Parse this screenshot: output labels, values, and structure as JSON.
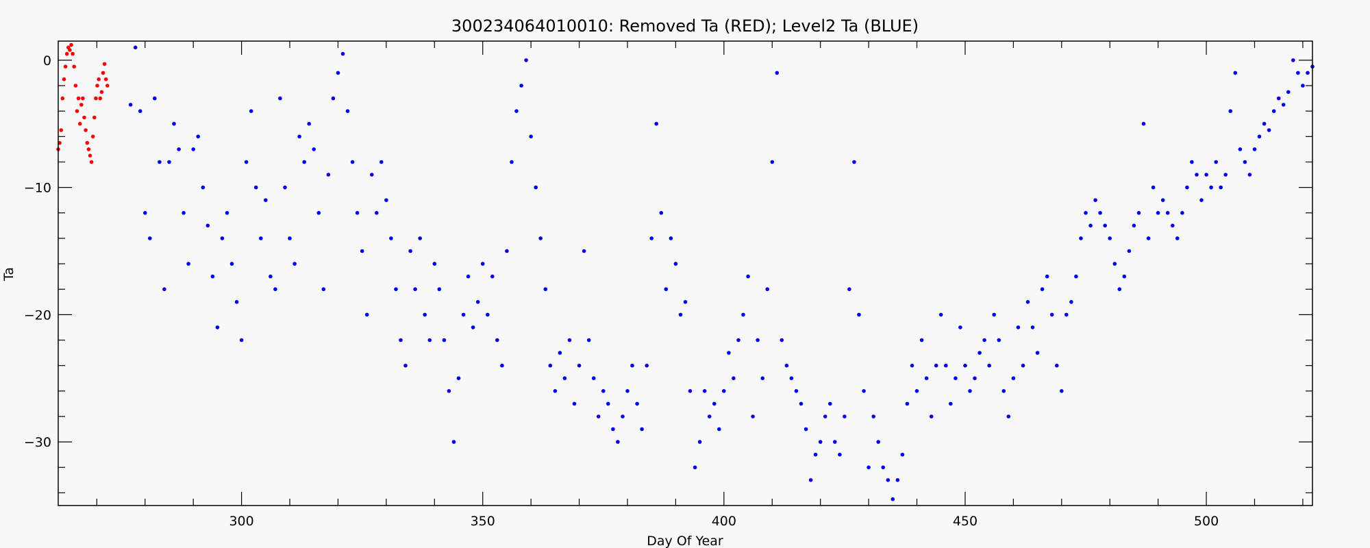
{
  "chart_data": {
    "type": "scatter",
    "title": "300234064010010: Removed Ta (RED); Level2 Ta (BLUE)",
    "xlabel": "Day Of Year",
    "ylabel": "Ta",
    "xlim": [
      262,
      522
    ],
    "ylim": [
      -35,
      1.5
    ],
    "x_ticks": [
      300,
      350,
      400,
      450,
      500
    ],
    "y_ticks": [
      0,
      -10,
      -20,
      -30
    ],
    "x_minor_step": 10,
    "y_minor_step": 2,
    "grid": false,
    "series": [
      {
        "color": "#ff0000",
        "marker": "dot",
        "points": [
          [
            262.0,
            -7.0
          ],
          [
            262.3,
            -6.5
          ],
          [
            262.6,
            -5.5
          ],
          [
            262.9,
            -3.0
          ],
          [
            263.2,
            -1.5
          ],
          [
            263.5,
            -0.5
          ],
          [
            263.8,
            0.5
          ],
          [
            264.1,
            1.0
          ],
          [
            264.4,
            0.8
          ],
          [
            264.7,
            1.2
          ],
          [
            265.0,
            0.5
          ],
          [
            265.3,
            -0.5
          ],
          [
            265.6,
            -2.0
          ],
          [
            265.9,
            -4.0
          ],
          [
            266.2,
            -3.0
          ],
          [
            266.5,
            -5.0
          ],
          [
            266.8,
            -3.5
          ],
          [
            267.1,
            -3.0
          ],
          [
            267.4,
            -4.5
          ],
          [
            267.7,
            -5.5
          ],
          [
            268.0,
            -6.5
          ],
          [
            268.3,
            -7.0
          ],
          [
            268.6,
            -7.5
          ],
          [
            268.9,
            -8.0
          ],
          [
            269.2,
            -6.0
          ],
          [
            269.5,
            -4.5
          ],
          [
            269.8,
            -3.0
          ],
          [
            270.1,
            -2.0
          ],
          [
            270.4,
            -1.5
          ],
          [
            270.7,
            -3.0
          ],
          [
            271.0,
            -2.5
          ],
          [
            271.3,
            -1.0
          ],
          [
            271.6,
            -0.3
          ],
          [
            271.9,
            -1.5
          ],
          [
            272.2,
            -2.0
          ]
        ]
      },
      {
        "color": "#0000ee",
        "marker": "dot",
        "points": [
          [
            277,
            -3.5
          ],
          [
            278,
            1.0
          ],
          [
            279,
            -4.0
          ],
          [
            280,
            -12.0
          ],
          [
            281,
            -14.0
          ],
          [
            282,
            -3.0
          ],
          [
            283,
            -8.0
          ],
          [
            284,
            -18.0
          ],
          [
            285,
            -8.0
          ],
          [
            286,
            -5.0
          ],
          [
            287,
            -7.0
          ],
          [
            288,
            -12.0
          ],
          [
            289,
            -16.0
          ],
          [
            290,
            -7.0
          ],
          [
            291,
            -6.0
          ],
          [
            292,
            -10.0
          ],
          [
            293,
            -13.0
          ],
          [
            294,
            -17.0
          ],
          [
            295,
            -21.0
          ],
          [
            296,
            -14.0
          ],
          [
            297,
            -12.0
          ],
          [
            298,
            -16.0
          ],
          [
            299,
            -19.0
          ],
          [
            300,
            -22.0
          ],
          [
            301,
            -8.0
          ],
          [
            302,
            -4.0
          ],
          [
            303,
            -10.0
          ],
          [
            304,
            -14.0
          ],
          [
            305,
            -11.0
          ],
          [
            306,
            -17.0
          ],
          [
            307,
            -18.0
          ],
          [
            308,
            -3.0
          ],
          [
            309,
            -10.0
          ],
          [
            310,
            -14.0
          ],
          [
            311,
            -16.0
          ],
          [
            312,
            -6.0
          ],
          [
            313,
            -8.0
          ],
          [
            314,
            -5.0
          ],
          [
            315,
            -7.0
          ],
          [
            316,
            -12.0
          ],
          [
            317,
            -18.0
          ],
          [
            318,
            -9.0
          ],
          [
            319,
            -3.0
          ],
          [
            320,
            -1.0
          ],
          [
            321,
            0.5
          ],
          [
            322,
            -4.0
          ],
          [
            323,
            -8.0
          ],
          [
            324,
            -12.0
          ],
          [
            325,
            -15.0
          ],
          [
            326,
            -20.0
          ],
          [
            327,
            -9.0
          ],
          [
            328,
            -12.0
          ],
          [
            329,
            -8.0
          ],
          [
            330,
            -11.0
          ],
          [
            331,
            -14.0
          ],
          [
            332,
            -18.0
          ],
          [
            333,
            -22.0
          ],
          [
            334,
            -24.0
          ],
          [
            335,
            -15.0
          ],
          [
            336,
            -18.0
          ],
          [
            337,
            -14.0
          ],
          [
            338,
            -20.0
          ],
          [
            339,
            -22.0
          ],
          [
            340,
            -16.0
          ],
          [
            341,
            -18.0
          ],
          [
            342,
            -22.0
          ],
          [
            343,
            -26.0
          ],
          [
            344,
            -30.0
          ],
          [
            345,
            -25.0
          ],
          [
            346,
            -20.0
          ],
          [
            347,
            -17.0
          ],
          [
            348,
            -21.0
          ],
          [
            349,
            -19.0
          ],
          [
            350,
            -16.0
          ],
          [
            351,
            -20.0
          ],
          [
            352,
            -17.0
          ],
          [
            353,
            -22.0
          ],
          [
            354,
            -24.0
          ],
          [
            355,
            -15.0
          ],
          [
            356,
            -8.0
          ],
          [
            357,
            -4.0
          ],
          [
            358,
            -2.0
          ],
          [
            359,
            0.0
          ],
          [
            360,
            -6.0
          ],
          [
            361,
            -10.0
          ],
          [
            362,
            -14.0
          ],
          [
            363,
            -18.0
          ],
          [
            364,
            -24.0
          ],
          [
            365,
            -26.0
          ],
          [
            366,
            -23.0
          ],
          [
            367,
            -25.0
          ],
          [
            368,
            -22.0
          ],
          [
            369,
            -27.0
          ],
          [
            370,
            -24.0
          ],
          [
            371,
            -15.0
          ],
          [
            372,
            -22.0
          ],
          [
            373,
            -25.0
          ],
          [
            374,
            -28.0
          ],
          [
            375,
            -26.0
          ],
          [
            376,
            -27.0
          ],
          [
            377,
            -29.0
          ],
          [
            378,
            -30.0
          ],
          [
            379,
            -28.0
          ],
          [
            380,
            -26.0
          ],
          [
            381,
            -24.0
          ],
          [
            382,
            -27.0
          ],
          [
            383,
            -29.0
          ],
          [
            384,
            -24.0
          ],
          [
            385,
            -14.0
          ],
          [
            386,
            -5.0
          ],
          [
            387,
            -12.0
          ],
          [
            388,
            -18.0
          ],
          [
            389,
            -14.0
          ],
          [
            390,
            -16.0
          ],
          [
            391,
            -20.0
          ],
          [
            392,
            -19.0
          ],
          [
            393,
            -26.0
          ],
          [
            394,
            -32.0
          ],
          [
            395,
            -30.0
          ],
          [
            396,
            -26.0
          ],
          [
            397,
            -28.0
          ],
          [
            398,
            -27.0
          ],
          [
            399,
            -29.0
          ],
          [
            400,
            -26.0
          ],
          [
            401,
            -23.0
          ],
          [
            402,
            -25.0
          ],
          [
            403,
            -22.0
          ],
          [
            404,
            -20.0
          ],
          [
            405,
            -17.0
          ],
          [
            406,
            -28.0
          ],
          [
            407,
            -22.0
          ],
          [
            408,
            -25.0
          ],
          [
            409,
            -18.0
          ],
          [
            410,
            -8.0
          ],
          [
            411,
            -1.0
          ],
          [
            412,
            -22.0
          ],
          [
            413,
            -24.0
          ],
          [
            414,
            -25.0
          ],
          [
            415,
            -26.0
          ],
          [
            416,
            -27.0
          ],
          [
            417,
            -29.0
          ],
          [
            418,
            -33.0
          ],
          [
            419,
            -31.0
          ],
          [
            420,
            -30.0
          ],
          [
            421,
            -28.0
          ],
          [
            422,
            -27.0
          ],
          [
            423,
            -30.0
          ],
          [
            424,
            -31.0
          ],
          [
            425,
            -28.0
          ],
          [
            426,
            -18.0
          ],
          [
            427,
            -8.0
          ],
          [
            428,
            -20.0
          ],
          [
            429,
            -26.0
          ],
          [
            430,
            -32.0
          ],
          [
            431,
            -28.0
          ],
          [
            432,
            -30.0
          ],
          [
            433,
            -32.0
          ],
          [
            434,
            -33.0
          ],
          [
            435,
            -34.5
          ],
          [
            436,
            -33.0
          ],
          [
            437,
            -31.0
          ],
          [
            438,
            -27.0
          ],
          [
            439,
            -24.0
          ],
          [
            440,
            -26.0
          ],
          [
            441,
            -22.0
          ],
          [
            442,
            -25.0
          ],
          [
            443,
            -28.0
          ],
          [
            444,
            -24.0
          ],
          [
            445,
            -20.0
          ],
          [
            446,
            -24.0
          ],
          [
            447,
            -27.0
          ],
          [
            448,
            -25.0
          ],
          [
            449,
            -21.0
          ],
          [
            450,
            -24.0
          ],
          [
            451,
            -26.0
          ],
          [
            452,
            -25.0
          ],
          [
            453,
            -23.0
          ],
          [
            454,
            -22.0
          ],
          [
            455,
            -24.0
          ],
          [
            456,
            -20.0
          ],
          [
            457,
            -22.0
          ],
          [
            458,
            -26.0
          ],
          [
            459,
            -28.0
          ],
          [
            460,
            -25.0
          ],
          [
            461,
            -21.0
          ],
          [
            462,
            -24.0
          ],
          [
            463,
            -19.0
          ],
          [
            464,
            -21.0
          ],
          [
            465,
            -23.0
          ],
          [
            466,
            -18.0
          ],
          [
            467,
            -17.0
          ],
          [
            468,
            -20.0
          ],
          [
            469,
            -24.0
          ],
          [
            470,
            -26.0
          ],
          [
            471,
            -20.0
          ],
          [
            472,
            -19.0
          ],
          [
            473,
            -17.0
          ],
          [
            474,
            -14.0
          ],
          [
            475,
            -12.0
          ],
          [
            476,
            -13.0
          ],
          [
            477,
            -11.0
          ],
          [
            478,
            -12.0
          ],
          [
            479,
            -13.0
          ],
          [
            480,
            -14.0
          ],
          [
            481,
            -16.0
          ],
          [
            482,
            -18.0
          ],
          [
            483,
            -17.0
          ],
          [
            484,
            -15.0
          ],
          [
            485,
            -13.0
          ],
          [
            486,
            -12.0
          ],
          [
            487,
            -5.0
          ],
          [
            488,
            -14.0
          ],
          [
            489,
            -10.0
          ],
          [
            490,
            -12.0
          ],
          [
            491,
            -11.0
          ],
          [
            492,
            -12.0
          ],
          [
            493,
            -13.0
          ],
          [
            494,
            -14.0
          ],
          [
            495,
            -12.0
          ],
          [
            496,
            -10.0
          ],
          [
            497,
            -8.0
          ],
          [
            498,
            -9.0
          ],
          [
            499,
            -11.0
          ],
          [
            500,
            -9.0
          ],
          [
            501,
            -10.0
          ],
          [
            502,
            -8.0
          ],
          [
            503,
            -10.0
          ],
          [
            504,
            -9.0
          ],
          [
            505,
            -4.0
          ],
          [
            506,
            -1.0
          ],
          [
            507,
            -7.0
          ],
          [
            508,
            -8.0
          ],
          [
            509,
            -9.0
          ],
          [
            510,
            -7.0
          ],
          [
            511,
            -6.0
          ],
          [
            512,
            -5.0
          ],
          [
            513,
            -5.5
          ],
          [
            514,
            -4.0
          ],
          [
            515,
            -3.0
          ],
          [
            516,
            -3.5
          ],
          [
            517,
            -2.5
          ],
          [
            518,
            0.0
          ],
          [
            519,
            -1.0
          ],
          [
            520,
            -2.0
          ],
          [
            521,
            -1.0
          ],
          [
            522,
            -0.5
          ]
        ]
      }
    ]
  }
}
